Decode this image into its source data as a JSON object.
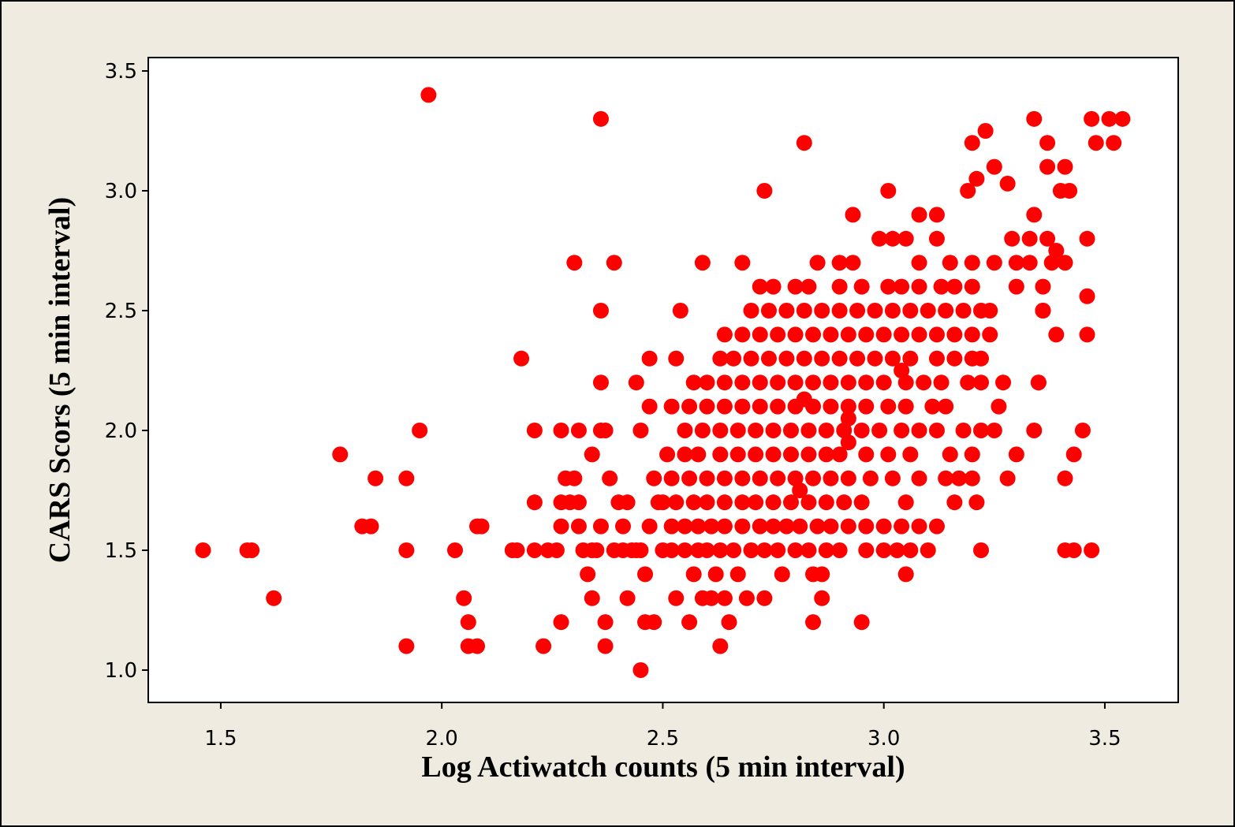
{
  "chart_data": {
    "type": "scatter",
    "x_label": "Log Actiwatch counts (5 min interval)",
    "y_label": "CARS Scors (5 min interval)",
    "color": "#ff0000",
    "xlim": [
      1.336,
      3.666
    ],
    "ylim": [
      0.865,
      3.556
    ],
    "xticks": [
      1.5,
      {
        "value": 2,
        "label": "2.0"
      },
      2.5,
      {
        "value": 3,
        "label": "3.0"
      },
      3.5
    ],
    "yticks": [
      {
        "value": 1,
        "label": "1.0"
      },
      1.5,
      {
        "value": 2,
        "label": "2.0"
      },
      2.5,
      {
        "value": 3,
        "label": "3.0"
      },
      3.5
    ],
    "x": [
      1.46,
      1.56,
      1.57,
      1.62,
      1.77,
      1.82,
      1.84,
      1.85,
      1.92,
      1.92,
      1.92,
      1.95,
      1.97,
      2.03,
      2.05,
      2.06,
      2.06,
      2.08,
      2.08,
      2.09,
      2.16,
      2.17,
      2.18,
      2.21,
      2.21,
      2.21,
      2.23,
      2.24,
      2.26,
      2.27,
      2.27,
      2.27,
      2.27,
      2.28,
      2.29,
      2.3,
      2.3,
      2.31,
      2.31,
      2.31,
      2.32,
      2.33,
      2.34,
      2.34,
      2.34,
      2.35,
      2.36,
      2.36,
      2.36,
      2.36,
      2.37,
      2.36,
      2.37,
      2.37,
      2.38,
      2.39,
      2.39,
      2.4,
      2.41,
      2.41,
      2.42,
      2.42,
      2.43,
      2.44,
      2.44,
      2.45,
      2.45,
      2.45,
      2.46,
      2.46,
      2.47,
      2.47,
      2.47,
      2.48,
      2.48,
      2.49,
      2.5,
      2.52,
      2.55,
      2.58,
      2.6,
      2.63,
      2.66,
      2.7,
      2.73,
      2.76,
      2.8,
      2.83,
      2.87,
      2.9,
      2.96,
      3.0,
      3.03,
      3.06,
      3.1,
      3.22,
      3.41,
      3.43,
      3.47,
      2.52,
      2.55,
      2.58,
      2.61,
      2.64,
      2.68,
      2.72,
      2.75,
      2.78,
      2.81,
      2.85,
      2.88,
      2.92,
      2.96,
      3.0,
      3.04,
      3.08,
      3.12,
      2.5,
      2.53,
      2.57,
      2.6,
      2.64,
      2.68,
      2.71,
      2.75,
      2.79,
      2.83,
      2.87,
      2.91,
      2.95,
      3.05,
      3.16,
      3.21,
      2.52,
      2.56,
      2.6,
      2.64,
      2.68,
      2.72,
      2.76,
      2.8,
      2.84,
      2.88,
      2.92,
      2.97,
      3.02,
      3.08,
      3.14,
      3.17,
      3.2,
      3.28,
      3.41,
      2.51,
      2.55,
      2.58,
      2.63,
      2.67,
      2.71,
      2.75,
      2.79,
      2.83,
      2.87,
      2.9,
      2.96,
      3.01,
      3.06,
      3.15,
      3.2,
      3.3,
      3.43,
      2.55,
      2.59,
      2.63,
      2.67,
      2.71,
      2.75,
      2.79,
      2.83,
      2.87,
      2.91,
      2.95,
      2.99,
      3.04,
      3.08,
      3.12,
      3.18,
      3.22,
      3.25,
      3.34,
      3.45,
      2.52,
      2.56,
      2.6,
      2.64,
      2.68,
      2.72,
      2.76,
      2.8,
      2.84,
      2.88,
      2.92,
      2.96,
      3.01,
      3.05,
      3.11,
      3.14,
      3.26,
      2.57,
      2.6,
      2.64,
      2.68,
      2.72,
      2.76,
      2.8,
      2.84,
      2.88,
      2.92,
      2.96,
      3.0,
      3.05,
      3.09,
      3.13,
      3.19,
      3.22,
      3.27,
      3.35,
      2.53,
      2.63,
      2.66,
      2.7,
      2.74,
      2.78,
      2.82,
      2.86,
      2.9,
      2.94,
      2.98,
      3.02,
      3.06,
      3.12,
      3.16,
      3.2,
      3.22,
      2.64,
      2.68,
      2.72,
      2.76,
      2.8,
      2.84,
      2.88,
      2.92,
      2.96,
      3.0,
      3.04,
      3.08,
      3.12,
      3.16,
      3.2,
      3.24,
      3.39,
      3.46,
      2.54,
      2.7,
      2.74,
      2.78,
      2.82,
      2.86,
      2.9,
      2.94,
      2.98,
      3.02,
      3.06,
      3.1,
      3.14,
      3.18,
      3.22,
      3.24,
      3.36,
      2.72,
      2.75,
      2.8,
      2.83,
      2.9,
      2.95,
      3.01,
      3.04,
      3.08,
      3.13,
      3.16,
      3.2,
      3.3,
      3.36,
      2.59,
      2.68,
      2.85,
      2.9,
      2.93,
      3.08,
      3.15,
      3.2,
      3.25,
      3.3,
      3.33,
      3.38,
      3.41,
      2.99,
      3.02,
      3.05,
      3.12,
      3.29,
      3.33,
      3.37,
      3.46,
      2.93,
      3.08,
      3.12,
      3.34,
      2.73,
      3.01,
      3.19,
      3.4,
      3.42,
      3.25,
      3.37,
      3.41,
      2.82,
      3.2,
      3.37,
      3.48,
      3.52,
      3.34,
      3.47,
      3.51,
      3.54,
      3.21,
      3.28,
      3.23,
      3.39,
      3.46,
      3.36,
      2.59,
      2.61,
      2.64,
      2.69,
      2.73,
      2.57,
      2.62,
      2.67,
      2.77,
      2.84,
      2.86,
      3.05,
      2.56,
      2.65,
      2.84,
      2.95,
      2.63,
      2.86,
      2.53,
      3.35,
      2.81,
      2.92,
      2.92,
      2.82,
      3.04
    ],
    "values": [
      1.5,
      1.5,
      1.5,
      1.3,
      1.9,
      1.6,
      1.6,
      1.8,
      1.8,
      1.5,
      1.1,
      2.0,
      3.4,
      1.5,
      1.3,
      1.2,
      1.1,
      1.1,
      1.6,
      1.6,
      1.5,
      1.5,
      2.3,
      1.7,
      2.0,
      1.5,
      1.1,
      1.5,
      1.5,
      2.0,
      1.7,
      1.6,
      1.2,
      1.8,
      1.7,
      2.7,
      1.8,
      1.7,
      1.6,
      2.0,
      1.5,
      1.4,
      1.3,
      1.5,
      1.9,
      1.5,
      3.3,
      2.5,
      2.0,
      2.2,
      2.0,
      1.6,
      1.2,
      1.1,
      1.8,
      2.7,
      1.5,
      1.7,
      1.5,
      1.6,
      1.7,
      1.3,
      1.5,
      2.2,
      1.5,
      2.0,
      1.0,
      1.5,
      1.2,
      1.4,
      2.1,
      2.3,
      1.6,
      1.8,
      1.2,
      1.7,
      1.5,
      1.5,
      1.5,
      1.5,
      1.5,
      1.5,
      1.5,
      1.5,
      1.5,
      1.5,
      1.5,
      1.5,
      1.5,
      1.5,
      1.5,
      1.5,
      1.5,
      1.5,
      1.5,
      1.5,
      1.5,
      1.5,
      1.5,
      1.6,
      1.6,
      1.6,
      1.6,
      1.6,
      1.6,
      1.6,
      1.6,
      1.6,
      1.6,
      1.6,
      1.6,
      1.6,
      1.6,
      1.6,
      1.6,
      1.6,
      1.6,
      1.7,
      1.7,
      1.7,
      1.7,
      1.7,
      1.7,
      1.7,
      1.7,
      1.7,
      1.7,
      1.7,
      1.7,
      1.7,
      1.7,
      1.7,
      1.7,
      1.8,
      1.8,
      1.8,
      1.8,
      1.8,
      1.8,
      1.8,
      1.8,
      1.8,
      1.8,
      1.8,
      1.8,
      1.8,
      1.8,
      1.8,
      1.8,
      1.8,
      1.8,
      1.8,
      1.9,
      1.9,
      1.9,
      1.9,
      1.9,
      1.9,
      1.9,
      1.9,
      1.9,
      1.9,
      1.9,
      1.9,
      1.9,
      1.9,
      1.9,
      1.9,
      1.9,
      1.9,
      2.0,
      2.0,
      2.0,
      2.0,
      2.0,
      2.0,
      2.0,
      2.0,
      2.0,
      2.0,
      2.0,
      2.0,
      2.0,
      2.0,
      2.0,
      2.0,
      2.0,
      2.0,
      2.0,
      2.0,
      2.1,
      2.1,
      2.1,
      2.1,
      2.1,
      2.1,
      2.1,
      2.1,
      2.1,
      2.1,
      2.1,
      2.1,
      2.1,
      2.1,
      2.1,
      2.1,
      2.1,
      2.2,
      2.2,
      2.2,
      2.2,
      2.2,
      2.2,
      2.2,
      2.2,
      2.2,
      2.2,
      2.2,
      2.2,
      2.2,
      2.2,
      2.2,
      2.2,
      2.2,
      2.2,
      2.2,
      2.3,
      2.3,
      2.3,
      2.3,
      2.3,
      2.3,
      2.3,
      2.3,
      2.3,
      2.3,
      2.3,
      2.3,
      2.3,
      2.3,
      2.3,
      2.3,
      2.3,
      2.4,
      2.4,
      2.4,
      2.4,
      2.4,
      2.4,
      2.4,
      2.4,
      2.4,
      2.4,
      2.4,
      2.4,
      2.4,
      2.4,
      2.4,
      2.4,
      2.4,
      2.4,
      2.5,
      2.5,
      2.5,
      2.5,
      2.5,
      2.5,
      2.5,
      2.5,
      2.5,
      2.5,
      2.5,
      2.5,
      2.5,
      2.5,
      2.5,
      2.5,
      2.5,
      2.6,
      2.6,
      2.6,
      2.6,
      2.6,
      2.6,
      2.6,
      2.6,
      2.6,
      2.6,
      2.6,
      2.6,
      2.6,
      2.6,
      2.7,
      2.7,
      2.7,
      2.7,
      2.7,
      2.7,
      2.7,
      2.7,
      2.7,
      2.7,
      2.7,
      2.7,
      2.7,
      2.8,
      2.8,
      2.8,
      2.8,
      2.8,
      2.8,
      2.8,
      2.8,
      2.9,
      2.9,
      2.9,
      2.9,
      3.0,
      3.0,
      3.0,
      3.0,
      3.0,
      3.1,
      3.1,
      3.1,
      3.2,
      3.2,
      3.2,
      3.2,
      3.2,
      3.3,
      3.3,
      3.3,
      3.3,
      3.05,
      3.03,
      3.25,
      2.75,
      2.56,
      2.5,
      1.3,
      1.3,
      1.3,
      1.3,
      1.3,
      1.4,
      1.4,
      1.4,
      1.4,
      1.4,
      1.4,
      1.4,
      1.2,
      1.2,
      1.2,
      1.2,
      1.1,
      1.3,
      1.3,
      2.2,
      1.75,
      2.05,
      1.95,
      2.13,
      2.25
    ]
  }
}
